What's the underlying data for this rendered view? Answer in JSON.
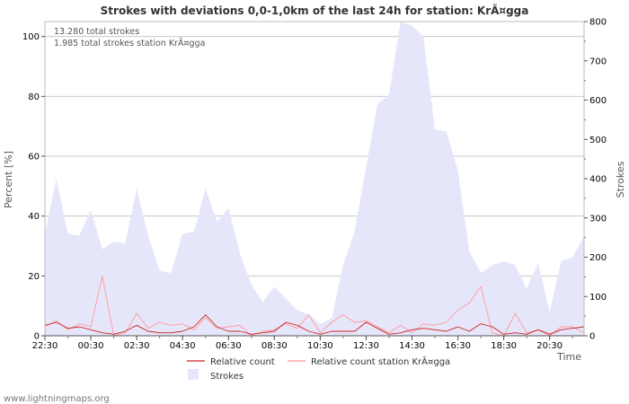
{
  "chart_data": {
    "type": "area",
    "title": "Strokes with deviations 0,0-1,0km of the last 24h for station: KrÃ¤gga",
    "info_lines": [
      "13.280 total strokes",
      "1.985 total strokes station KrÃ¤gga"
    ],
    "ylabel_left": "Percent   [%]",
    "ylabel_right": "Strokes",
    "xlabel": "Time",
    "ylim_left": [
      0,
      105
    ],
    "ylim_right": [
      0,
      800
    ],
    "yticks_left": [
      0,
      20,
      40,
      60,
      80,
      100
    ],
    "yticks_right": [
      0,
      100,
      200,
      300,
      400,
      500,
      600,
      700,
      800
    ],
    "x_tick_labels": [
      "22:30",
      "00:30",
      "02:30",
      "04:30",
      "06:30",
      "08:30",
      "10:30",
      "12:30",
      "14:30",
      "16:30",
      "18:30",
      "20:30"
    ],
    "x_tick_positions": [
      0,
      4,
      8,
      12,
      16,
      20,
      24,
      28,
      32,
      36,
      40,
      44
    ],
    "x_range": [
      0,
      47
    ],
    "series": [
      {
        "name": "Strokes",
        "axis": "right",
        "color": "#e6e6fb",
        "values": [
          260,
          400,
          260,
          255,
          320,
          220,
          240,
          235,
          375,
          255,
          165,
          160,
          260,
          265,
          375,
          290,
          325,
          210,
          130,
          85,
          125,
          95,
          65,
          55,
          30,
          45,
          180,
          265,
          430,
          590,
          615,
          800,
          790,
          760,
          525,
          520,
          420,
          215,
          160,
          180,
          190,
          180,
          120,
          185,
          60,
          190,
          200,
          255
        ]
      },
      {
        "name": "Relative count",
        "axis": "left",
        "color": "#cc2222",
        "values": [
          3.5,
          4.5,
          2.5,
          3.0,
          2.0,
          1.0,
          0.5,
          1.5,
          3.5,
          1.5,
          1.0,
          1.0,
          1.5,
          3.0,
          7.0,
          3.0,
          1.5,
          1.5,
          0.5,
          1.0,
          1.5,
          4.5,
          3.5,
          1.5,
          0.5,
          1.5,
          1.5,
          1.5,
          4.5,
          2.5,
          0.5,
          1.0,
          2.0,
          2.5,
          2.0,
          1.5,
          3.0,
          1.5,
          4.0,
          3.0,
          0.5,
          1.0,
          0.5,
          2.0,
          0.5,
          2.0,
          2.5,
          3.0
        ]
      },
      {
        "name": "Relative count station KrÃ¤gga",
        "axis": "left",
        "color": "#ff9999",
        "values": [
          3.0,
          5.0,
          2.0,
          4.0,
          3.0,
          20.0,
          0.0,
          1.0,
          7.5,
          2.5,
          4.5,
          3.5,
          4.0,
          2.0,
          6.0,
          2.5,
          3.0,
          3.5,
          0.0,
          1.5,
          2.0,
          4.0,
          2.5,
          7.0,
          1.0,
          4.5,
          7.0,
          4.5,
          5.0,
          3.0,
          1.0,
          3.5,
          1.0,
          4.0,
          3.5,
          4.5,
          8.5,
          11.0,
          16.5,
          1.0,
          0.0,
          7.5,
          1.0,
          2.0,
          0.0,
          3.0,
          3.0,
          1.0
        ]
      }
    ],
    "legend": [
      {
        "label": "Relative count",
        "symbol": "line",
        "color": "#cc2222"
      },
      {
        "label": "Relative count station KrÃ¤gga",
        "symbol": "line",
        "color": "#ff9999"
      },
      {
        "label": "Strokes",
        "symbol": "box",
        "color": "#e6e6fb"
      }
    ],
    "grid": true,
    "footer": "www.lightningmaps.org"
  }
}
